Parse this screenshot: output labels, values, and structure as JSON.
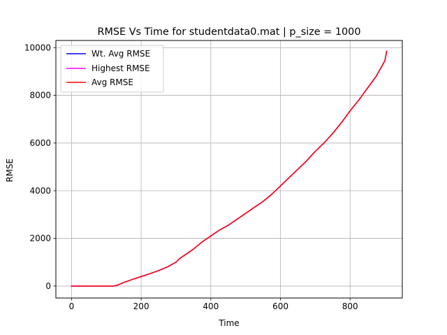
{
  "chart_data": {
    "type": "line",
    "title": "RMSE Vs Time for studentdata0.mat | p_size = 1000",
    "xlabel": "Time",
    "ylabel": "RMSE",
    "xlim": [
      -45,
      950
    ],
    "ylim": [
      -500,
      10300
    ],
    "xticks": [
      0,
      200,
      400,
      600,
      800
    ],
    "yticks": [
      0,
      2000,
      4000,
      6000,
      8000,
      10000
    ],
    "xtick_labels": [
      "0",
      "200",
      "400",
      "600",
      "800"
    ],
    "ytick_labels": [
      "0",
      "2000",
      "4000",
      "6000",
      "8000",
      "10000"
    ],
    "grid": true,
    "legend_position": "top-left",
    "x": [
      0,
      25,
      50,
      75,
      100,
      120,
      130,
      150,
      175,
      200,
      225,
      250,
      275,
      300,
      310,
      325,
      350,
      375,
      400,
      410,
      425,
      450,
      475,
      500,
      525,
      550,
      575,
      600,
      625,
      650,
      675,
      700,
      725,
      750,
      775,
      800,
      825,
      850,
      875,
      900,
      905
    ],
    "series": [
      {
        "name": "Wt. Avg RMSE",
        "color": "#0000ff",
        "values": [
          0,
          0,
          0,
          0,
          0,
          0,
          30,
          150,
          280,
          400,
          520,
          650,
          800,
          1000,
          1150,
          1300,
          1550,
          1850,
          2100,
          2200,
          2350,
          2550,
          2800,
          3050,
          3300,
          3550,
          3850,
          4200,
          4550,
          4900,
          5250,
          5650,
          6000,
          6400,
          6850,
          7350,
          7800,
          8300,
          8800,
          9450,
          9850
        ]
      },
      {
        "name": "Highest RMSE",
        "color": "#ff00ff",
        "values": [
          0,
          0,
          0,
          0,
          0,
          0,
          30,
          150,
          280,
          400,
          520,
          650,
          800,
          1000,
          1150,
          1300,
          1550,
          1850,
          2100,
          2200,
          2350,
          2550,
          2800,
          3050,
          3300,
          3550,
          3850,
          4200,
          4550,
          4900,
          5250,
          5650,
          6000,
          6400,
          6850,
          7350,
          7800,
          8300,
          8800,
          9450,
          9850
        ]
      },
      {
        "name": "Avg RMSE",
        "color": "#ff0000",
        "values": [
          0,
          0,
          0,
          0,
          0,
          0,
          30,
          150,
          280,
          400,
          520,
          650,
          800,
          1000,
          1150,
          1300,
          1550,
          1850,
          2100,
          2200,
          2350,
          2550,
          2800,
          3050,
          3300,
          3550,
          3850,
          4200,
          4550,
          4900,
          5250,
          5650,
          6000,
          6400,
          6850,
          7350,
          7800,
          8300,
          8800,
          9450,
          9850
        ]
      }
    ]
  }
}
